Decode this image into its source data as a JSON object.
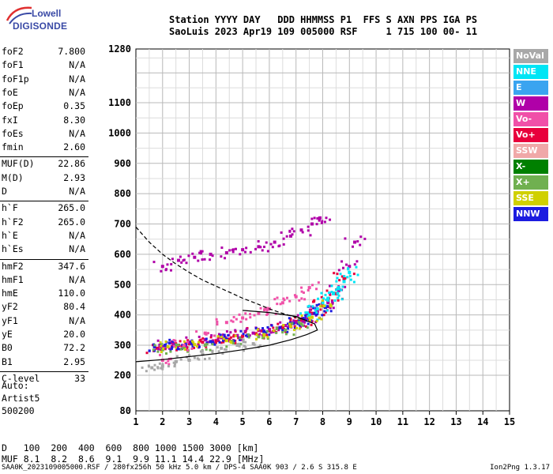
{
  "logo": {
    "line1": "Lowell",
    "line2": "DIGISONDE"
  },
  "header": {
    "line1": "Station YYYY DAY   DDD HHMMSS P1  FFS S AXN PPS IGA PS",
    "line2": "SaoLuis 2023 Apr19 109 005000 RSF     1 715 100 00- 11"
  },
  "params": [
    {
      "k": "foF2",
      "v": "7.800"
    },
    {
      "k": "foF1",
      "v": "N/A"
    },
    {
      "k": "foF1p",
      "v": "N/A"
    },
    {
      "k": "foE",
      "v": "N/A"
    },
    {
      "k": "foEp",
      "v": "0.35"
    },
    {
      "k": "fxI",
      "v": "8.30"
    },
    {
      "k": "foEs",
      "v": "N/A"
    },
    {
      "k": "fmin",
      "v": "2.60"
    },
    {
      "k": "MUF(D)",
      "v": "22.86"
    },
    {
      "k": "M(D)",
      "v": "2.93"
    },
    {
      "k": "D",
      "v": "N/A"
    },
    {
      "k": "h`F",
      "v": "265.0"
    },
    {
      "k": "h`F2",
      "v": "265.0"
    },
    {
      "k": "h`E",
      "v": "N/A"
    },
    {
      "k": "h`Es",
      "v": "N/A"
    },
    {
      "k": "hmF2",
      "v": "347.6"
    },
    {
      "k": "hmF1",
      "v": "N/A"
    },
    {
      "k": "hmE",
      "v": "110.0"
    },
    {
      "k": "yF2",
      "v": "80.4"
    },
    {
      "k": "yF1",
      "v": "N/A"
    },
    {
      "k": "yE",
      "v": "20.0"
    },
    {
      "k": "B0",
      "v": "72.2"
    },
    {
      "k": "B1",
      "v": "2.95"
    },
    {
      "k": "C-level",
      "v": "33"
    }
  ],
  "auto": {
    "line1": "Auto:",
    "line2": "Artist5",
    "line3": "500200"
  },
  "legend": [
    {
      "label": "NoVal",
      "color": "#a8a8a8"
    },
    {
      "label": "NNE",
      "color": "#00e5f5"
    },
    {
      "label": "E",
      "color": "#3aa4f0"
    },
    {
      "label": "W",
      "color": "#b000a8"
    },
    {
      "label": "Vo-",
      "color": "#f050a8"
    },
    {
      "label": "Vo+",
      "color": "#e8003c"
    },
    {
      "label": "SSW",
      "color": "#f0a8a8"
    },
    {
      "label": "X-",
      "color": "#008000"
    },
    {
      "label": "X+",
      "color": "#70b050"
    },
    {
      "label": "SSE",
      "color": "#d0d000"
    },
    {
      "label": "NNW",
      "color": "#1c1ce0"
    }
  ],
  "muf_table": {
    "d_label": "D",
    "d_values": [
      "100",
      "200",
      "400",
      "600",
      "800",
      "1000",
      "1500",
      "3000"
    ],
    "d_unit": "[km]",
    "muf_label": "MUF",
    "muf_values": [
      "8.1",
      "8.2",
      "8.6",
      "9.1",
      "9.9",
      "11.1",
      "14.4",
      "22.9"
    ],
    "muf_unit": "[MHz]"
  },
  "footer": {
    "left": "SAA0K_2023109005000.RSF / 280fx256h 50 kHz 5.0 km / DPS-4 SAA0K 903 / 2.6 S 315.8 E",
    "right": "Ion2Png 1.3.17"
  },
  "chart_data": {
    "type": "scatter",
    "title": "",
    "xlabel": "",
    "ylabel": "",
    "xlim": [
      1,
      15
    ],
    "ylim": [
      80,
      1280
    ],
    "x_ticks": [
      1,
      2,
      3,
      4,
      5,
      6,
      7,
      8,
      9,
      10,
      11,
      12,
      13,
      14,
      15
    ],
    "y_ticks": [
      80,
      200,
      300,
      400,
      500,
      600,
      700,
      800,
      900,
      1000,
      1100,
      1280
    ],
    "grid": true,
    "series": [
      {
        "name": "Vo+",
        "x": [
          1.8,
          2.2,
          2.6,
          3.0,
          3.5,
          4.0,
          4.5,
          5.0,
          5.5,
          6.0,
          6.5,
          6.8,
          7.0,
          7.2,
          7.4,
          7.6,
          7.8,
          8.0,
          8.2,
          8.5,
          8.8
        ],
        "y": [
          290,
          295,
          300,
          305,
          310,
          315,
          320,
          330,
          338,
          348,
          360,
          370,
          378,
          385,
          395,
          405,
          415,
          430,
          445,
          470,
          520
        ]
      },
      {
        "name": "W",
        "x": [
          1.9,
          2.4,
          3.0,
          3.6,
          4.2,
          4.8,
          5.4,
          6.0,
          6.6,
          7.0,
          7.4,
          7.8,
          8.2,
          8.6,
          9.0,
          9.2
        ],
        "y": [
          300,
          305,
          310,
          318,
          325,
          332,
          340,
          352,
          365,
          375,
          390,
          410,
          440,
          480,
          560,
          640
        ]
      },
      {
        "name": "NNW",
        "x": [
          1.7,
          2.1,
          2.5,
          3.1,
          3.8,
          4.4,
          5.2,
          5.8,
          6.4,
          6.9,
          7.3,
          7.7,
          8.1
        ],
        "y": [
          295,
          300,
          300,
          306,
          312,
          320,
          330,
          345,
          358,
          372,
          388,
          405,
          425
        ]
      },
      {
        "name": "NNE",
        "x": [
          7.5,
          7.8,
          8.0,
          8.2,
          8.4,
          8.6,
          8.8,
          9.0
        ],
        "y": [
          400,
          420,
          440,
          455,
          470,
          490,
          510,
          540
        ]
      },
      {
        "name": "X+",
        "x": [
          2.0,
          2.8,
          3.6,
          4.6,
          5.6,
          6.6,
          7.2
        ],
        "y": [
          285,
          292,
          300,
          312,
          328,
          350,
          370
        ]
      },
      {
        "name": "SSE",
        "x": [
          2.2,
          3.2,
          4.4,
          5.8,
          6.8,
          7.6,
          8.3
        ],
        "y": [
          295,
          302,
          315,
          335,
          362,
          392,
          430
        ]
      },
      {
        "name": "Vo-",
        "x": [
          2.0,
          2.8,
          3.6,
          4.4,
          5.0,
          5.6,
          6.0,
          6.5,
          7.0,
          7.5
        ],
        "y": [
          250,
          300,
          340,
          375,
          390,
          405,
          420,
          440,
          460,
          490
        ]
      },
      {
        "name": "W2",
        "x": [
          2.0,
          2.6,
          3.2,
          3.8,
          4.4,
          5.0,
          5.6,
          6.2,
          6.8,
          7.2,
          7.6,
          7.9
        ],
        "y": [
          560,
          580,
          590,
          600,
          605,
          615,
          625,
          640,
          660,
          680,
          700,
          720
        ]
      },
      {
        "name": "NoVal",
        "x": [
          1.6,
          2.0,
          2.5,
          3.0,
          3.5,
          4.2,
          4.8,
          5.4
        ],
        "y": [
          225,
          230,
          245,
          250,
          270,
          290,
          300,
          305
        ]
      }
    ],
    "traces": [
      {
        "name": "profile-solid",
        "x": [
          1.0,
          2.0,
          3.0,
          4.0,
          5.0,
          6.0,
          6.8,
          7.4,
          7.8,
          7.7,
          7.0,
          6.0,
          5.0
        ],
        "y": [
          245,
          252,
          262,
          272,
          285,
          300,
          318,
          335,
          350,
          370,
          395,
          408,
          415
        ]
      },
      {
        "name": "profile-dashed",
        "x": [
          1.0,
          1.5,
          2.0,
          2.5,
          3.0,
          3.5,
          4.0,
          4.5,
          5.0,
          5.5,
          6.0,
          6.5,
          7.0,
          7.3
        ],
        "y": [
          690,
          640,
          600,
          568,
          540,
          515,
          495,
          475,
          455,
          438,
          420,
          405,
          392,
          385
        ]
      }
    ]
  }
}
